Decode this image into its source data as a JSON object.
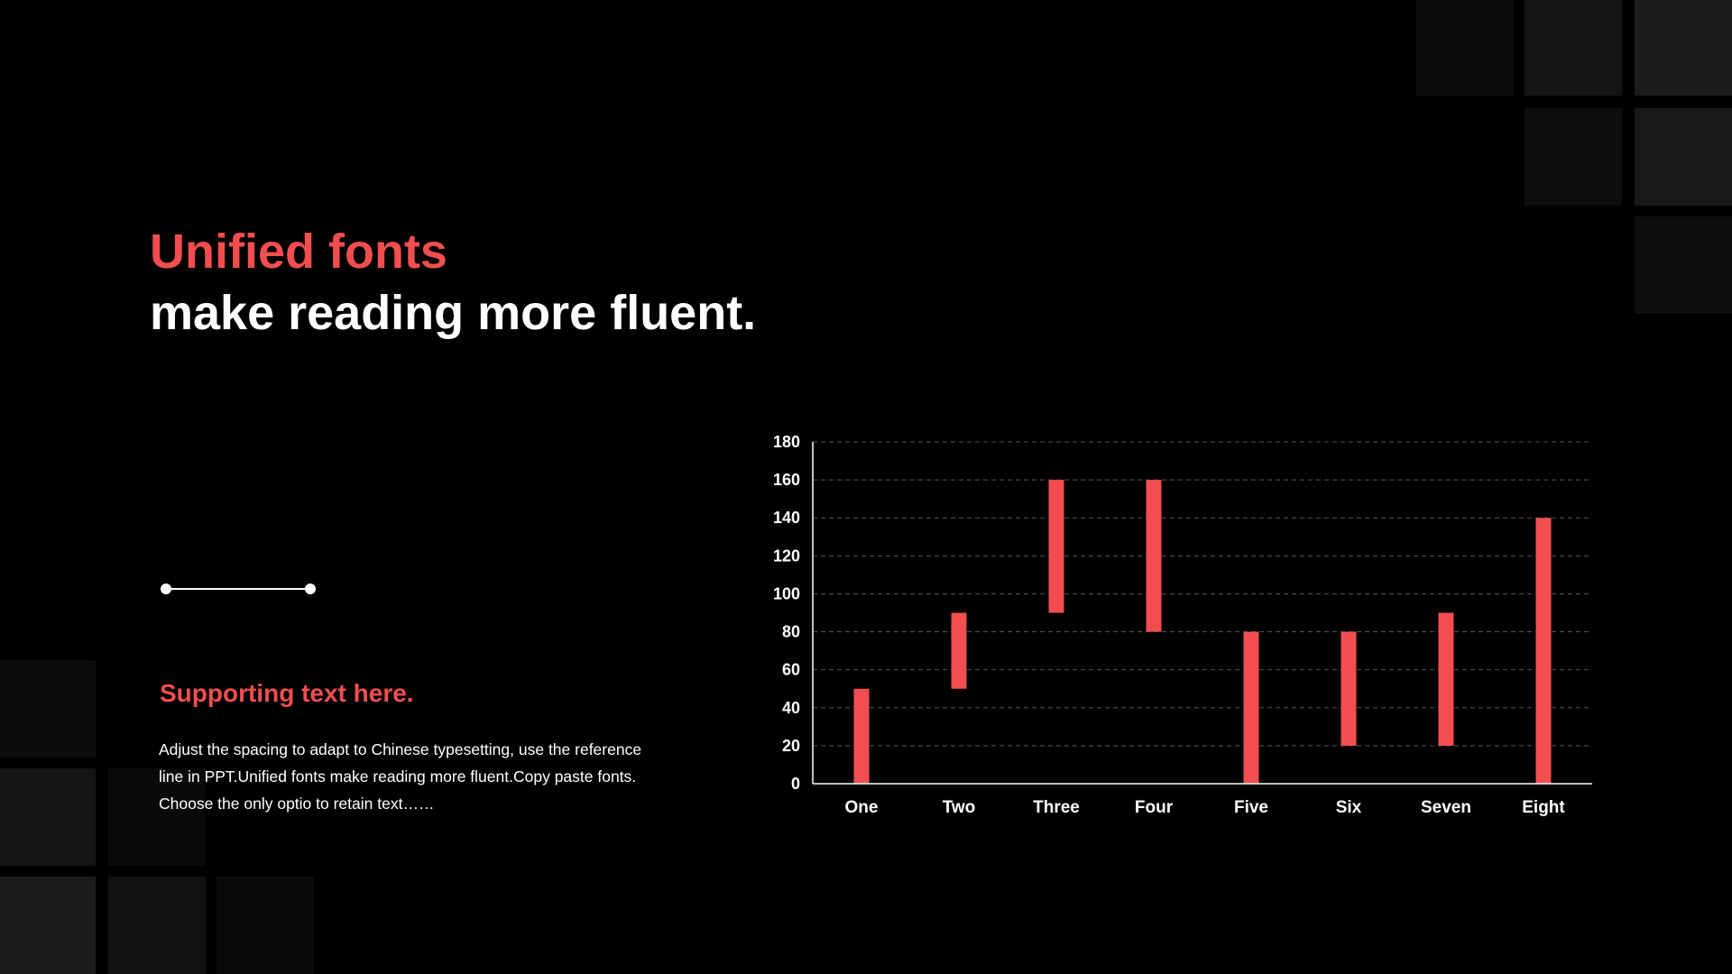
{
  "heading": {
    "highlight": "Unified fonts",
    "rest": "make reading more fluent."
  },
  "subheading": "Supporting text here.",
  "body": "Adjust the spacing to adapt to Chinese typesetting, use the reference line in PPT.Unified fonts make reading more fluent.Copy paste fonts. Choose the only optio to retain text……",
  "colors": {
    "accent": "#f24e4f",
    "background": "#000000",
    "text": "#ffffff",
    "grid": "#555555"
  },
  "chart_data": {
    "type": "bar",
    "subtype": "floating-range",
    "categories": [
      "One",
      "Two",
      "Three",
      "Four",
      "Five",
      "Six",
      "Seven",
      "Eight"
    ],
    "series": [
      {
        "low": [
          0,
          50,
          90,
          80,
          0,
          20,
          20,
          0
        ],
        "high": [
          50,
          90,
          160,
          160,
          80,
          80,
          90,
          140
        ]
      }
    ],
    "ylim": [
      0,
      180
    ],
    "yticks": [
      0,
      20,
      40,
      60,
      80,
      100,
      120,
      140,
      160,
      180
    ],
    "grid": true,
    "grid_style": "dashed",
    "legend": "none",
    "title": "",
    "xlabel": "",
    "ylabel": ""
  }
}
